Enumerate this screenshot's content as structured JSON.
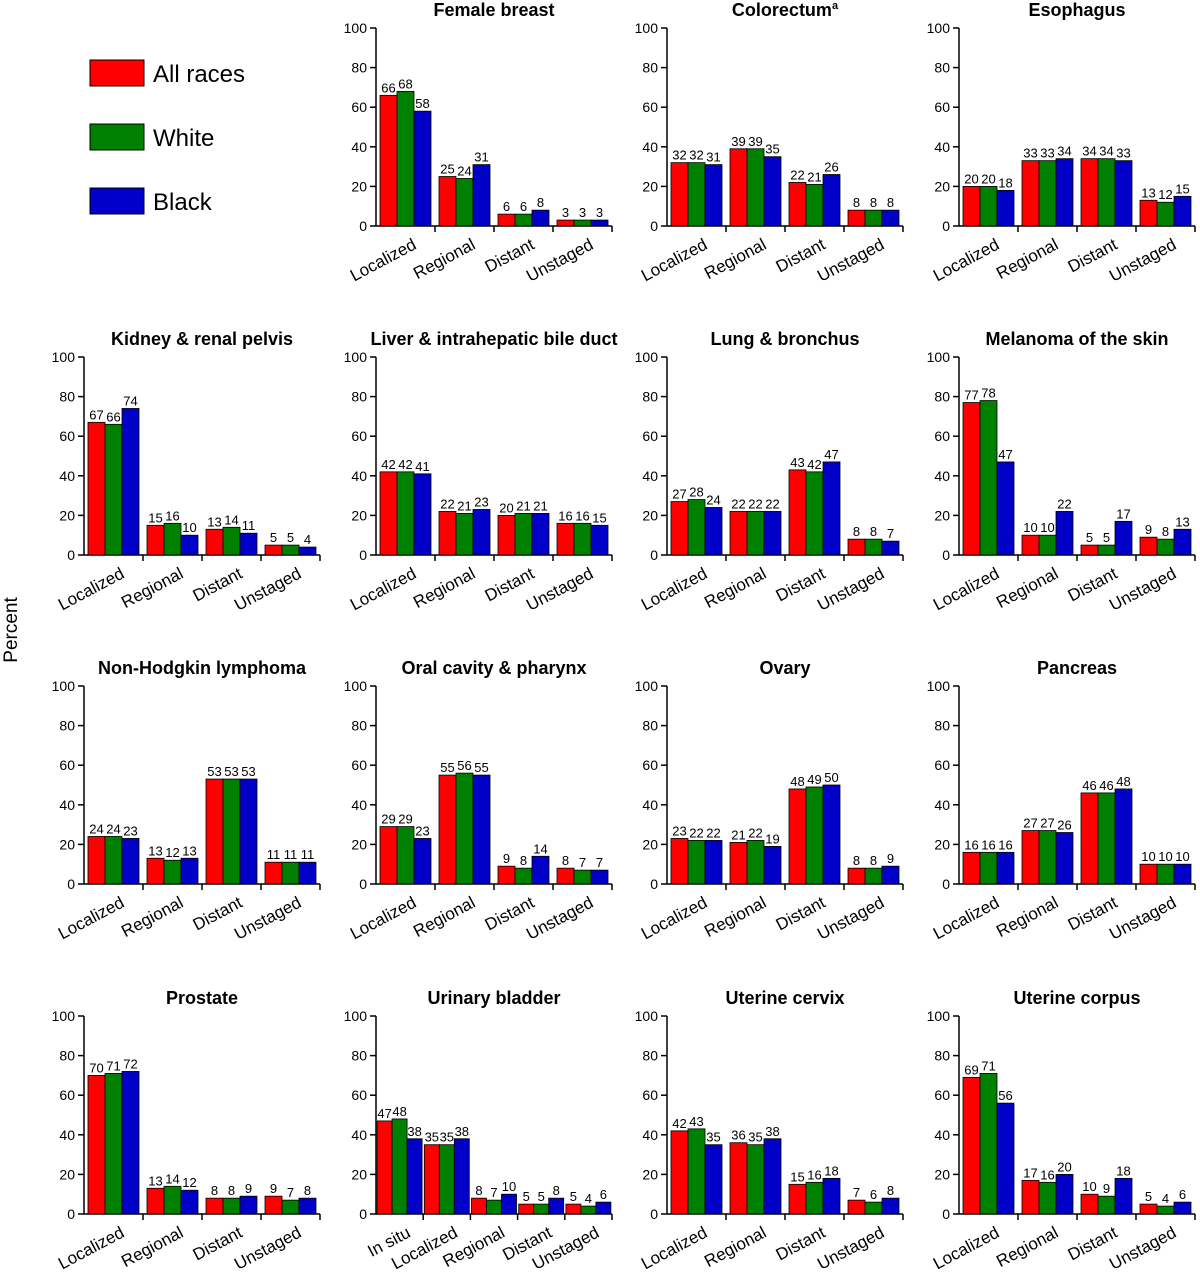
{
  "ylabel": "Percent",
  "legend": {
    "placement": "top-left",
    "items": [
      {
        "label": "All races",
        "color": "#ff0000"
      },
      {
        "label": "White",
        "color": "#008000"
      },
      {
        "label": "Black",
        "color": "#0000c8"
      }
    ]
  },
  "chart_data": [
    {
      "type": "bar",
      "title": "Female breast",
      "title_sup": "",
      "ylim": [
        0,
        100
      ],
      "yticks": [
        0,
        20,
        40,
        60,
        80,
        100
      ],
      "categories": [
        "Localized",
        "Regional",
        "Distant",
        "Unstaged"
      ],
      "series": [
        {
          "name": "All races",
          "values": [
            66,
            25,
            6,
            3
          ]
        },
        {
          "name": "White",
          "values": [
            68,
            24,
            6,
            3
          ]
        },
        {
          "name": "Black",
          "values": [
            58,
            31,
            8,
            3
          ]
        }
      ]
    },
    {
      "type": "bar",
      "title": "Colorectum",
      "title_sup": "a",
      "ylim": [
        0,
        100
      ],
      "yticks": [
        0,
        20,
        40,
        60,
        80,
        100
      ],
      "categories": [
        "Localized",
        "Regional",
        "Distant",
        "Unstaged"
      ],
      "series": [
        {
          "name": "All races",
          "values": [
            32,
            39,
            22,
            8
          ]
        },
        {
          "name": "White",
          "values": [
            32,
            39,
            21,
            8
          ]
        },
        {
          "name": "Black",
          "values": [
            31,
            35,
            26,
            8
          ]
        }
      ]
    },
    {
      "type": "bar",
      "title": "Esophagus",
      "title_sup": "",
      "ylim": [
        0,
        100
      ],
      "yticks": [
        0,
        20,
        40,
        60,
        80,
        100
      ],
      "categories": [
        "Localized",
        "Regional",
        "Distant",
        "Unstaged"
      ],
      "series": [
        {
          "name": "All races",
          "values": [
            20,
            33,
            34,
            13
          ]
        },
        {
          "name": "White",
          "values": [
            20,
            33,
            34,
            12
          ]
        },
        {
          "name": "Black",
          "values": [
            18,
            34,
            33,
            15
          ]
        }
      ]
    },
    {
      "type": "bar",
      "title": "Kidney & renal pelvis",
      "title_sup": "",
      "ylim": [
        0,
        100
      ],
      "yticks": [
        0,
        20,
        40,
        60,
        80,
        100
      ],
      "categories": [
        "Localized",
        "Regional",
        "Distant",
        "Unstaged"
      ],
      "series": [
        {
          "name": "All races",
          "values": [
            67,
            15,
            13,
            5
          ]
        },
        {
          "name": "White",
          "values": [
            66,
            16,
            14,
            5
          ]
        },
        {
          "name": "Black",
          "values": [
            74,
            10,
            11,
            4
          ]
        }
      ]
    },
    {
      "type": "bar",
      "title": "Liver & intrahepatic bile duct",
      "title_sup": "",
      "ylim": [
        0,
        100
      ],
      "yticks": [
        0,
        20,
        40,
        60,
        80,
        100
      ],
      "categories": [
        "Localized",
        "Regional",
        "Distant",
        "Unstaged"
      ],
      "series": [
        {
          "name": "All races",
          "values": [
            42,
            22,
            20,
            16
          ]
        },
        {
          "name": "White",
          "values": [
            42,
            21,
            21,
            16
          ]
        },
        {
          "name": "Black",
          "values": [
            41,
            23,
            21,
            15
          ]
        }
      ]
    },
    {
      "type": "bar",
      "title": "Lung & bronchus",
      "title_sup": "",
      "ylim": [
        0,
        100
      ],
      "yticks": [
        0,
        20,
        40,
        60,
        80,
        100
      ],
      "categories": [
        "Localized",
        "Regional",
        "Distant",
        "Unstaged"
      ],
      "series": [
        {
          "name": "All races",
          "values": [
            27,
            22,
            43,
            8
          ]
        },
        {
          "name": "White",
          "values": [
            28,
            22,
            42,
            8
          ]
        },
        {
          "name": "Black",
          "values": [
            24,
            22,
            47,
            7
          ]
        }
      ]
    },
    {
      "type": "bar",
      "title": "Melanoma of the skin",
      "title_sup": "",
      "ylim": [
        0,
        100
      ],
      "yticks": [
        0,
        20,
        40,
        60,
        80,
        100
      ],
      "categories": [
        "Localized",
        "Regional",
        "Distant",
        "Unstaged"
      ],
      "series": [
        {
          "name": "All races",
          "values": [
            77,
            10,
            5,
            9
          ]
        },
        {
          "name": "White",
          "values": [
            78,
            10,
            5,
            8
          ]
        },
        {
          "name": "Black",
          "values": [
            47,
            22,
            17,
            13
          ]
        }
      ]
    },
    {
      "type": "bar",
      "title": "Non-Hodgkin lymphoma",
      "title_sup": "",
      "ylim": [
        0,
        100
      ],
      "yticks": [
        0,
        20,
        40,
        60,
        80,
        100
      ],
      "categories": [
        "Localized",
        "Regional",
        "Distant",
        "Unstaged"
      ],
      "series": [
        {
          "name": "All races",
          "values": [
            24,
            13,
            53,
            11
          ]
        },
        {
          "name": "White",
          "values": [
            24,
            12,
            53,
            11
          ]
        },
        {
          "name": "Black",
          "values": [
            23,
            13,
            53,
            11
          ]
        }
      ]
    },
    {
      "type": "bar",
      "title": "Oral cavity & pharynx",
      "title_sup": "",
      "ylim": [
        0,
        100
      ],
      "yticks": [
        0,
        20,
        40,
        60,
        80,
        100
      ],
      "categories": [
        "Localized",
        "Regional",
        "Distant",
        "Unstaged"
      ],
      "series": [
        {
          "name": "All races",
          "values": [
            29,
            55,
            9,
            8
          ]
        },
        {
          "name": "White",
          "values": [
            29,
            56,
            8,
            7
          ]
        },
        {
          "name": "Black",
          "values": [
            23,
            55,
            14,
            7
          ]
        }
      ]
    },
    {
      "type": "bar",
      "title": "Ovary",
      "title_sup": "",
      "ylim": [
        0,
        100
      ],
      "yticks": [
        0,
        20,
        40,
        60,
        80,
        100
      ],
      "categories": [
        "Localized",
        "Regional",
        "Distant",
        "Unstaged"
      ],
      "series": [
        {
          "name": "All races",
          "values": [
            23,
            21,
            48,
            8
          ]
        },
        {
          "name": "White",
          "values": [
            22,
            22,
            49,
            8
          ]
        },
        {
          "name": "Black",
          "values": [
            22,
            19,
            50,
            9
          ]
        }
      ]
    },
    {
      "type": "bar",
      "title": "Pancreas",
      "title_sup": "",
      "ylim": [
        0,
        100
      ],
      "yticks": [
        0,
        20,
        40,
        60,
        80,
        100
      ],
      "categories": [
        "Localized",
        "Regional",
        "Distant",
        "Unstaged"
      ],
      "series": [
        {
          "name": "All races",
          "values": [
            16,
            27,
            46,
            10
          ]
        },
        {
          "name": "White",
          "values": [
            16,
            27,
            46,
            10
          ]
        },
        {
          "name": "Black",
          "values": [
            16,
            26,
            48,
            10
          ]
        }
      ]
    },
    {
      "type": "bar",
      "title": "Prostate",
      "title_sup": "",
      "ylim": [
        0,
        100
      ],
      "yticks": [
        0,
        20,
        40,
        60,
        80,
        100
      ],
      "categories": [
        "Localized",
        "Regional",
        "Distant",
        "Unstaged"
      ],
      "series": [
        {
          "name": "All races",
          "values": [
            70,
            13,
            8,
            9
          ]
        },
        {
          "name": "White",
          "values": [
            71,
            14,
            8,
            7
          ]
        },
        {
          "name": "Black",
          "values": [
            72,
            12,
            9,
            8
          ]
        }
      ]
    },
    {
      "type": "bar",
      "title": "Urinary bladder",
      "title_sup": "",
      "ylim": [
        0,
        100
      ],
      "yticks": [
        0,
        20,
        40,
        60,
        80,
        100
      ],
      "categories": [
        "In situ",
        "Localized",
        "Regional",
        "Distant",
        "Unstaged"
      ],
      "series": [
        {
          "name": "All races",
          "values": [
            47,
            35,
            8,
            5,
            5
          ]
        },
        {
          "name": "White",
          "values": [
            48,
            35,
            7,
            5,
            4
          ]
        },
        {
          "name": "Black",
          "values": [
            38,
            38,
            10,
            8,
            6
          ]
        }
      ]
    },
    {
      "type": "bar",
      "title": "Uterine cervix",
      "title_sup": "",
      "ylim": [
        0,
        100
      ],
      "yticks": [
        0,
        20,
        40,
        60,
        80,
        100
      ],
      "categories": [
        "Localized",
        "Regional",
        "Distant",
        "Unstaged"
      ],
      "series": [
        {
          "name": "All races",
          "values": [
            42,
            36,
            15,
            7
          ]
        },
        {
          "name": "White",
          "values": [
            43,
            35,
            16,
            6
          ]
        },
        {
          "name": "Black",
          "values": [
            35,
            38,
            18,
            8
          ]
        }
      ]
    },
    {
      "type": "bar",
      "title": "Uterine corpus",
      "title_sup": "",
      "ylim": [
        0,
        100
      ],
      "yticks": [
        0,
        20,
        40,
        60,
        80,
        100
      ],
      "categories": [
        "Localized",
        "Regional",
        "Distant",
        "Unstaged"
      ],
      "series": [
        {
          "name": "All races",
          "values": [
            69,
            17,
            10,
            5
          ]
        },
        {
          "name": "White",
          "values": [
            71,
            16,
            9,
            4
          ]
        },
        {
          "name": "Black",
          "values": [
            56,
            20,
            18,
            6
          ]
        }
      ]
    }
  ]
}
